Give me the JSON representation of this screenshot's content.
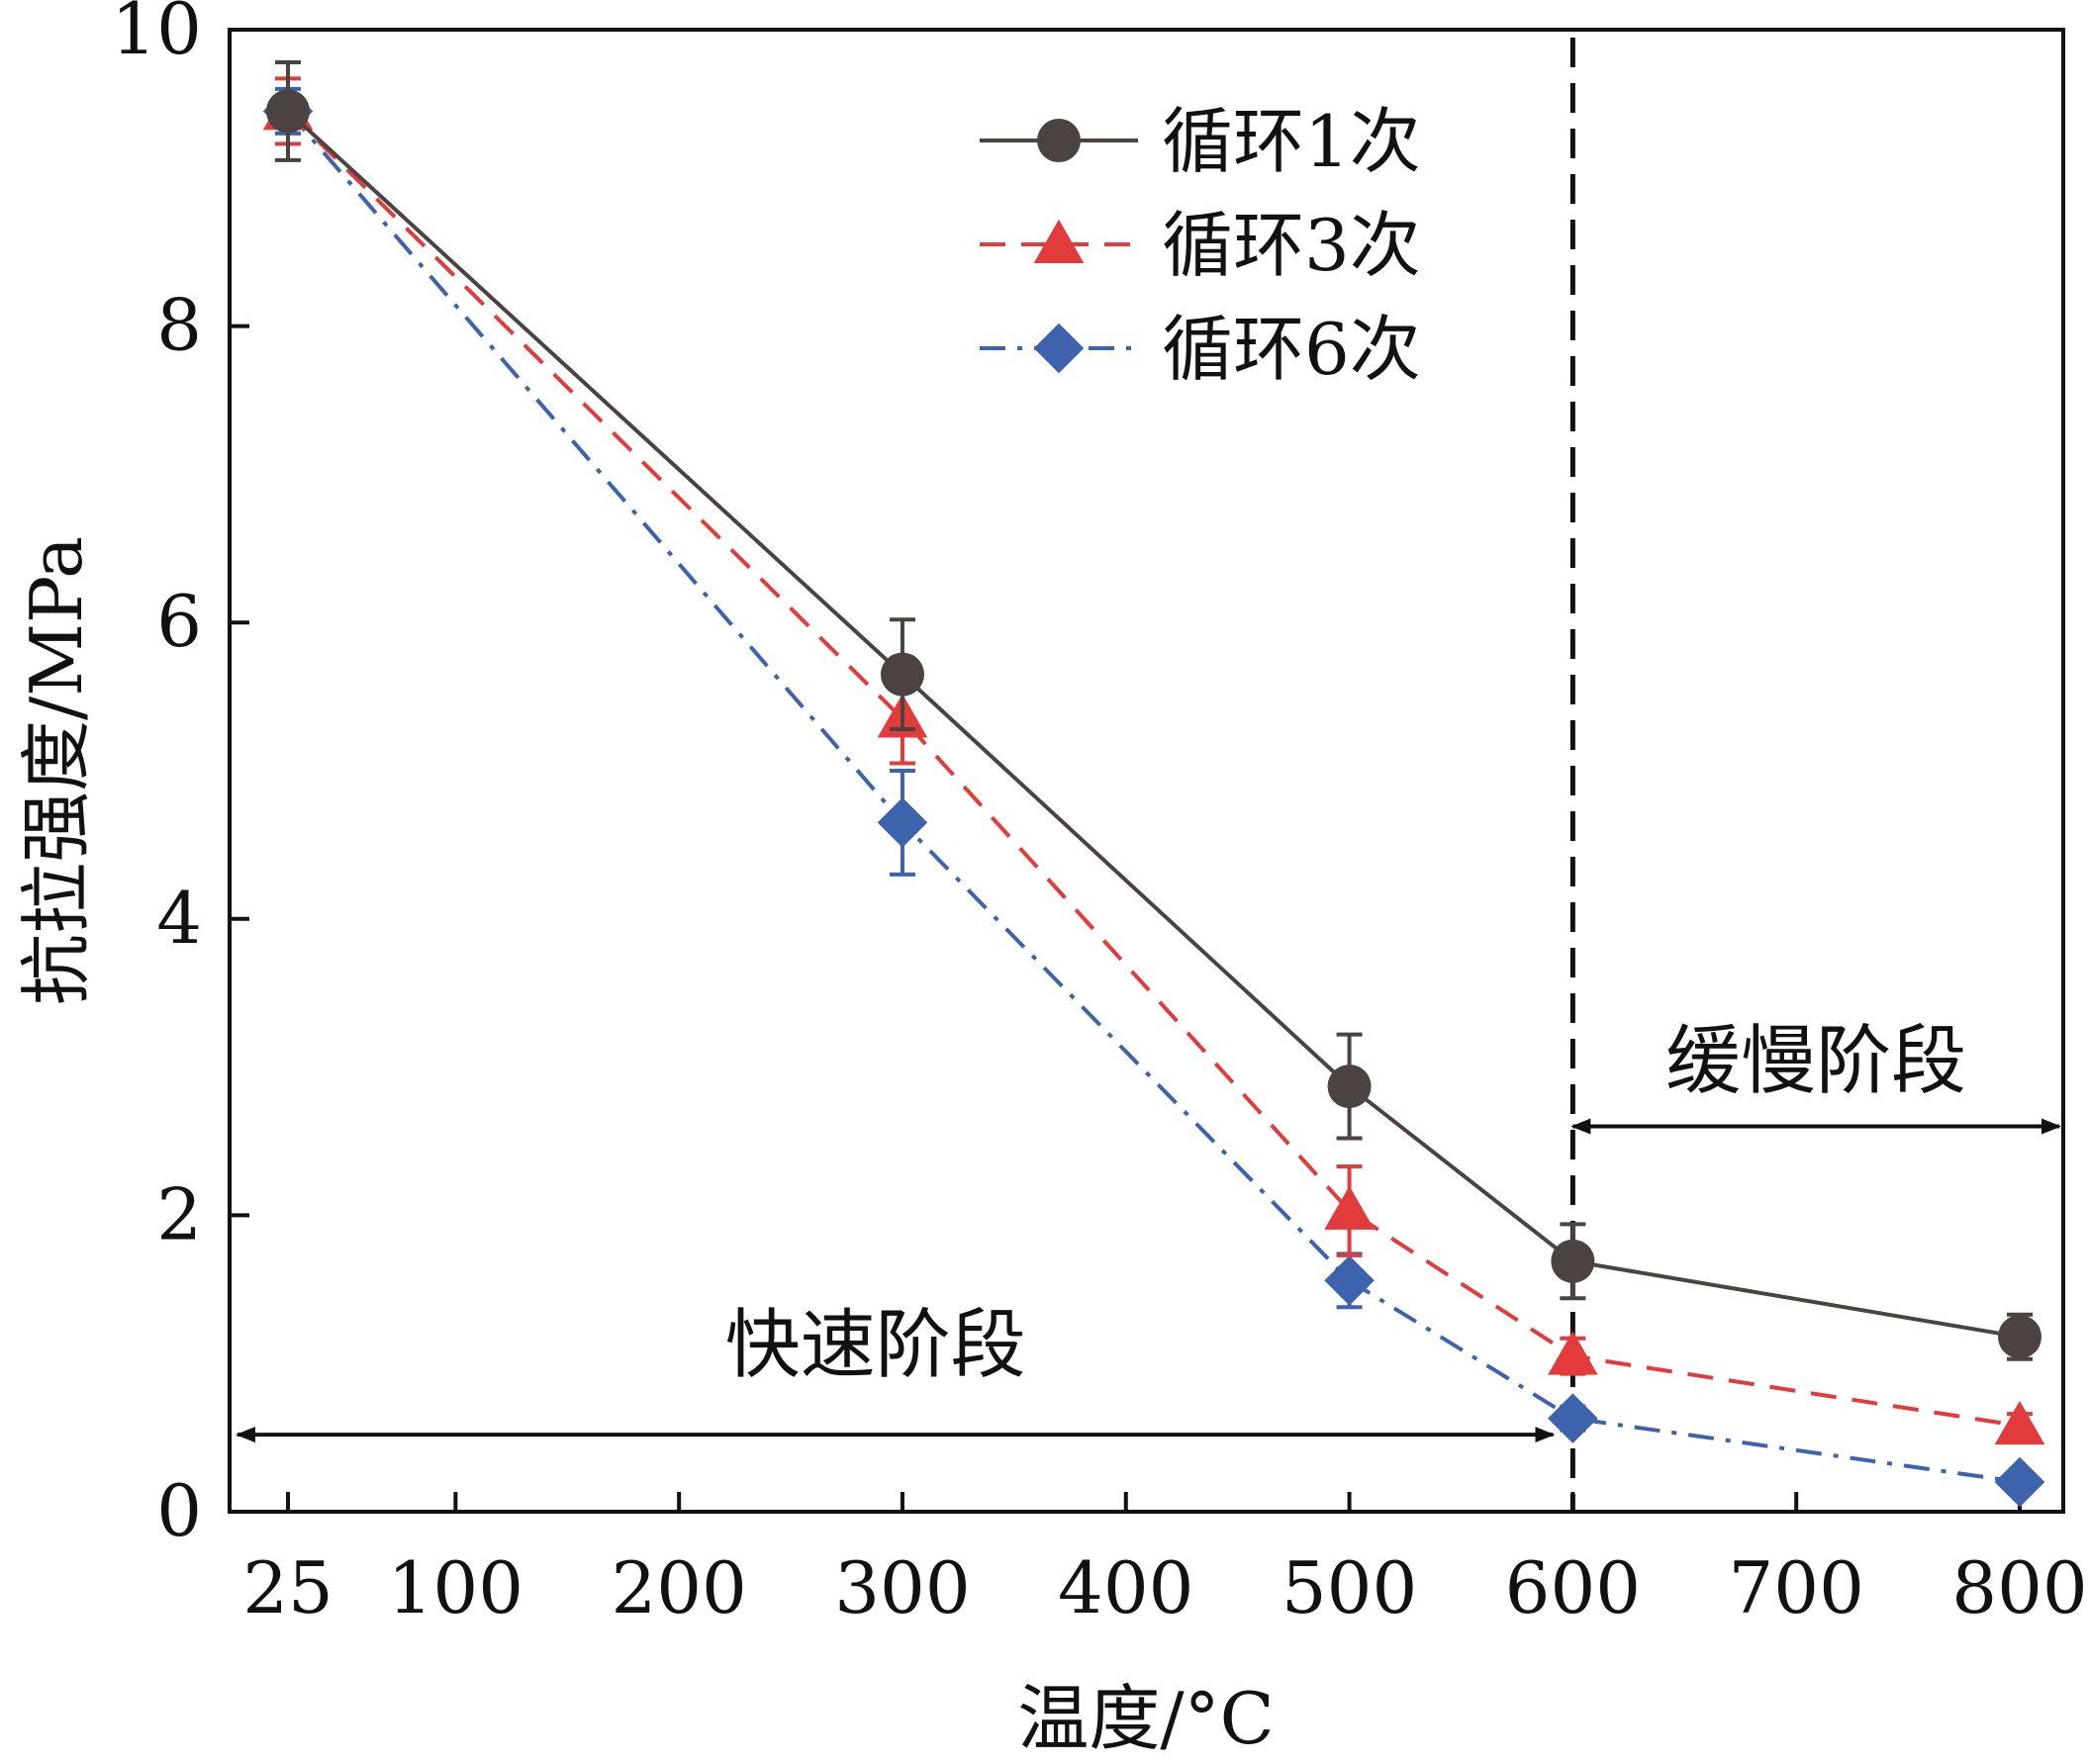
{
  "chart_data": {
    "type": "line",
    "title": "",
    "xlabel": "温度/°C",
    "ylabel": "抗拉强度/MPa",
    "xlim": [
      25,
      800
    ],
    "ylim": [
      0,
      10
    ],
    "x_ticks": [
      25,
      100,
      200,
      300,
      400,
      500,
      600,
      700,
      800
    ],
    "y_ticks": [
      0,
      2,
      4,
      6,
      8,
      10
    ],
    "legend_position": "top-right",
    "grid": false,
    "series": [
      {
        "name": "循环1次",
        "color": "#4a4341",
        "line_style": "solid",
        "marker": "circle",
        "x": [
          25,
          300,
          500,
          600,
          800
        ],
        "y": [
          9.45,
          5.65,
          2.87,
          1.69,
          1.18
        ],
        "error": [
          0.33,
          0.37,
          0.35,
          0.25,
          0.15
        ]
      },
      {
        "name": "循环3次",
        "color": "#e23b3b",
        "line_style": "dashed",
        "marker": "triangle",
        "x": [
          25,
          300,
          500,
          600,
          800
        ],
        "y": [
          9.45,
          5.35,
          2.03,
          1.05,
          0.58
        ],
        "error": [
          0.22,
          0.3,
          0.3,
          0.12,
          0.08
        ]
      },
      {
        "name": "循环6次",
        "color": "#3d63ad",
        "line_style": "dashdot",
        "marker": "diamond",
        "x": [
          25,
          300,
          500,
          600,
          800
        ],
        "y": [
          9.45,
          4.65,
          1.56,
          0.63,
          0.2
        ],
        "error": [
          0.15,
          0.35,
          0.18,
          0.08,
          0.05
        ]
      }
    ],
    "vline": {
      "x": 600,
      "color": "#111111",
      "style": "dashed"
    },
    "annotations": [
      {
        "text": "快速阶段",
        "x_start": 25,
        "x_end": 600,
        "y_text": 0.95,
        "y_arrow": 0.52
      },
      {
        "text": "缓慢阶段",
        "x_start": 600,
        "x_end": 800,
        "y_text": 2.8,
        "y_arrow": 2.6
      }
    ]
  }
}
